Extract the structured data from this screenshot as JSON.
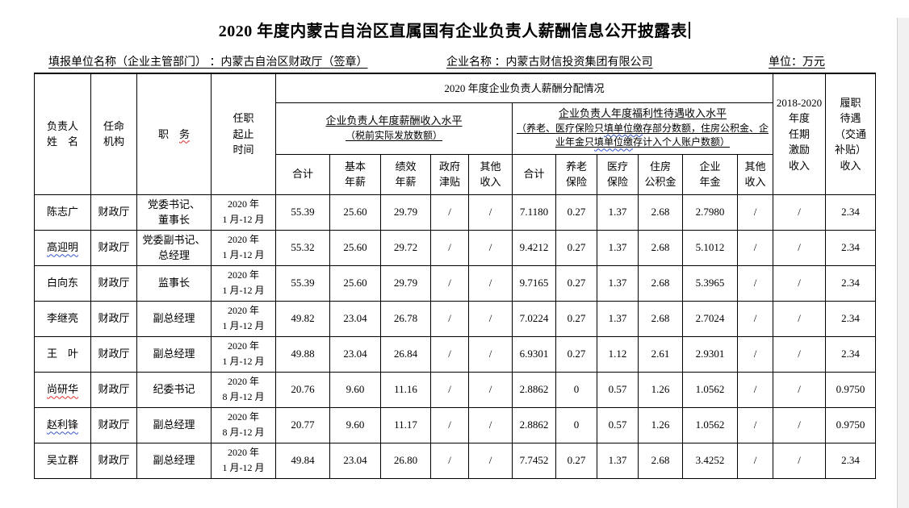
{
  "colors": {
    "spellcheck_red": "#e02b2b",
    "spellcheck_blue": "#3355cc",
    "page_background": "#ffffff",
    "table_border": "#000000",
    "window_edge": "#f1f1f1"
  },
  "page": {
    "title": "2020 年度内蒙古自治区直属国有企业负责人薪酬信息公开披露表",
    "report_unit": "填报单位名称（企业主管部门） ：内蒙古自治区财政厅（签章）",
    "company": "企业名称 ：内蒙古财信投资集团有限公司",
    "unit": "单位：万元"
  },
  "table": {
    "header": {
      "name": "负责人\n姓　名",
      "agency": "任命\n机构",
      "position_prefix": "职　",
      "position_marked": "务",
      "term": "任职\n起止\n时间",
      "salary_group_title": "2020 年度企业负责人薪酬分配情况",
      "salary_sub_title": "企业负责人年度薪酬收入水平",
      "salary_sub_note": "（税前实际发放数额）",
      "welfare_sub_title": "企业负责人年度福利性待遇收入水平",
      "welfare_sub_note_segments": [
        {
          "text": "（养老、医疗保险只",
          "mark": ""
        },
        {
          "text": "填单位缴",
          "mark": "blue"
        },
        {
          "text": "存部分数额，住房公积金、企业年金只",
          "mark": ""
        },
        {
          "text": "填单位缴",
          "mark": "blue"
        },
        {
          "text": "存计入个人账户数额）",
          "mark": ""
        }
      ],
      "columns": [
        "合计",
        "基本\n年薪",
        "绩效\n年薪",
        "政府\n津贴",
        "其他\n收入",
        "合计",
        "养老\n保险",
        "医疗\n保险",
        "住房\n公积金",
        "企业\n年金",
        "其他\n收入"
      ],
      "incentive": "2018-2020\n年度\n任期\n激励\n收入",
      "allowance": "履职\n待遇\n（交通\n补贴）\n收入"
    },
    "value_column_keys": [
      "salary-total",
      "base-salary",
      "performance-salary",
      "gov-allowance",
      "other-income-1",
      "welfare-total",
      "pension",
      "medical",
      "housing-fund",
      "annuity",
      "other-income-2",
      "term-incentive",
      "duty-allowance"
    ],
    "rows": [
      {
        "name": "陈志广",
        "name_mark": "",
        "agency": "财政厅",
        "position": "党委书记、\n董事长",
        "term": "2020 年\n1 月-12 月",
        "values": [
          "55.39",
          "25.60",
          "29.79",
          "/",
          "/",
          "7.1180",
          "0.27",
          "1.37",
          "2.68",
          "2.7980",
          "/",
          "/",
          "2.34"
        ]
      },
      {
        "name": "高迎明",
        "name_mark": "blue",
        "agency": "财政厅",
        "position": "党委副书记、\n总经理",
        "term": "2020 年\n1 月-12 月",
        "values": [
          "55.32",
          "25.60",
          "29.72",
          "/",
          "/",
          "9.4212",
          "0.27",
          "1.37",
          "2.68",
          "5.1012",
          "/",
          "/",
          "2.34"
        ]
      },
      {
        "name": "白向东",
        "name_mark": "",
        "agency": "财政厅",
        "position": "监事长",
        "term": "2020 年\n1 月-12 月",
        "values": [
          "55.39",
          "25.60",
          "29.79",
          "/",
          "/",
          "9.7165",
          "0.27",
          "1.37",
          "2.68",
          "5.3965",
          "/",
          "/",
          "2.34"
        ]
      },
      {
        "name": "李继亮",
        "name_mark": "",
        "agency": "财政厅",
        "position": "副总经理",
        "term": "2020 年\n1 月-12 月",
        "values": [
          "49.82",
          "23.04",
          "26.78",
          "/",
          "/",
          "7.0224",
          "0.27",
          "1.37",
          "2.68",
          "2.7024",
          "/",
          "/",
          "2.34"
        ]
      },
      {
        "name": "王　叶",
        "name_mark": "",
        "agency": "财政厅",
        "position": "副总经理",
        "term": "2020 年\n1 月-12 月",
        "values": [
          "49.88",
          "23.04",
          "26.84",
          "/",
          "/",
          "6.9301",
          "0.27",
          "1.12",
          "2.61",
          "2.9301",
          "/",
          "/",
          "2.34"
        ]
      },
      {
        "name": "尚研华",
        "name_mark": "red",
        "agency": "财政厅",
        "position": "纪委书记",
        "term": "2020 年\n8 月-12 月",
        "values": [
          "20.76",
          "9.60",
          "11.16",
          "/",
          "/",
          "2.8862",
          "0",
          "0.57",
          "1.26",
          "1.0562",
          "/",
          "/",
          "0.9750"
        ]
      },
      {
        "name": "赵利锋",
        "name_mark": "blue",
        "agency": "财政厅",
        "position": "副总经理",
        "term": "2020 年\n8 月-12 月",
        "values": [
          "20.77",
          "9.60",
          "11.17",
          "/",
          "/",
          "2.8862",
          "0",
          "0.57",
          "1.26",
          "1.0562",
          "/",
          "/",
          "0.9750"
        ]
      },
      {
        "name": "吴立群",
        "name_mark": "",
        "agency": "财政厅",
        "position": "副总经理",
        "term": "2020 年\n1 月-12 月",
        "values": [
          "49.84",
          "23.04",
          "26.80",
          "/",
          "/",
          "7.7452",
          "0.27",
          "1.37",
          "2.68",
          "3.4252",
          "/",
          "/",
          "2.34"
        ]
      }
    ]
  }
}
